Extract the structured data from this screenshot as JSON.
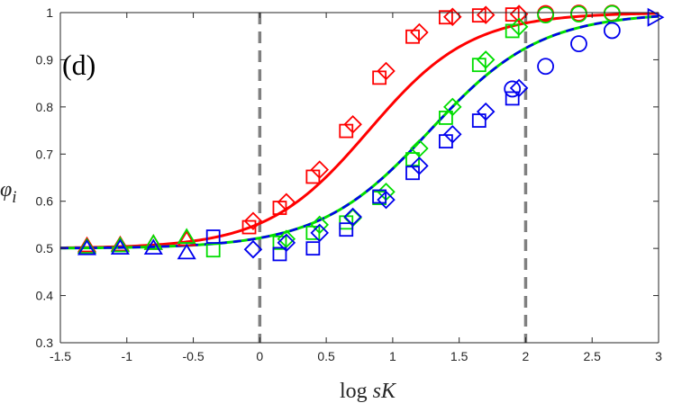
{
  "chart_data": {
    "type": "scatter",
    "panel_label": "(d)",
    "ylabel": "φ",
    "ylabel_sub": "i",
    "xlabel_log": "log",
    "xlabel_sK": "sK",
    "xlim": [
      -1.5,
      3
    ],
    "ylim": [
      0.3,
      1
    ],
    "xticks": [
      -1.5,
      -1,
      -0.5,
      0,
      0.5,
      1,
      1.5,
      2,
      2.5,
      3
    ],
    "xtick_labels": [
      "-1.5",
      "-1",
      "-0.5",
      "0",
      "0.5",
      "1",
      "1.5",
      "2",
      "2.5",
      "3"
    ],
    "yticks": [
      0.3,
      0.4,
      0.5,
      0.6,
      0.7,
      0.8,
      0.9,
      1
    ],
    "ytick_labels": [
      "0.3",
      "0.4",
      "0.5",
      "0.6",
      "0.7",
      "0.8",
      "0.9",
      "1"
    ],
    "vlines": [
      0,
      2
    ],
    "colors": {
      "red": "#ff0000",
      "green": "#00dd00",
      "blue": "#0000ee",
      "dash": "#808080",
      "axis": "#262626"
    },
    "curves": [
      {
        "name": "red-curve",
        "color": "red",
        "style": "solid",
        "center": 0.82,
        "slope": 2.6
      },
      {
        "name": "green-curve",
        "color": "green",
        "style": "solid",
        "center": 1.28,
        "slope": 2.4
      },
      {
        "name": "blue-curve",
        "color": "blue",
        "style": "dashed",
        "center": 1.28,
        "slope": 2.4
      }
    ],
    "series": [
      {
        "name": "red-triangle",
        "marker": "triangle-up",
        "color": "red",
        "points": [
          [
            -1.3,
            0.505
          ],
          [
            -1.05,
            0.507
          ],
          [
            -0.8,
            0.51
          ],
          [
            -0.55,
            0.518
          ]
        ]
      },
      {
        "name": "green-triangle",
        "marker": "triangle-up",
        "color": "green",
        "points": [
          [
            -1.3,
            0.502
          ],
          [
            -1.05,
            0.505
          ],
          [
            -0.8,
            0.51
          ],
          [
            -0.55,
            0.523
          ]
        ]
      },
      {
        "name": "blue-triangle",
        "marker": "triangle-up",
        "color": "blue",
        "points": [
          [
            -1.3,
            0.499
          ],
          [
            -1.05,
            0.5
          ],
          [
            -0.8,
            0.5
          ],
          [
            -0.55,
            0.49
          ]
        ]
      },
      {
        "name": "red-square",
        "marker": "square",
        "color": "red",
        "points": [
          [
            -0.08,
            0.545
          ],
          [
            0.15,
            0.586
          ],
          [
            0.4,
            0.652
          ],
          [
            0.65,
            0.749
          ],
          [
            0.9,
            0.862
          ],
          [
            1.15,
            0.949
          ],
          [
            1.4,
            0.99
          ],
          [
            1.65,
            0.994
          ],
          [
            1.9,
            0.996
          ]
        ]
      },
      {
        "name": "red-diamond",
        "marker": "diamond",
        "color": "red",
        "points": [
          [
            -0.05,
            0.558
          ],
          [
            0.2,
            0.598
          ],
          [
            0.45,
            0.667
          ],
          [
            0.7,
            0.763
          ],
          [
            0.95,
            0.876
          ],
          [
            1.2,
            0.958
          ],
          [
            1.45,
            0.991
          ],
          [
            1.7,
            0.995
          ],
          [
            1.95,
            0.997
          ]
        ]
      },
      {
        "name": "red-circle",
        "marker": "circle",
        "color": "red",
        "points": [
          [
            2.15,
            0.998
          ],
          [
            2.4,
            0.999
          ],
          [
            2.65,
            0.999
          ]
        ]
      },
      {
        "name": "green-square",
        "marker": "square",
        "color": "green",
        "points": [
          [
            -0.35,
            0.496
          ],
          [
            0.15,
            0.512
          ],
          [
            0.4,
            0.533
          ],
          [
            0.65,
            0.555
          ],
          [
            0.9,
            0.607
          ],
          [
            1.15,
            0.689
          ],
          [
            1.4,
            0.777
          ],
          [
            1.65,
            0.889
          ],
          [
            1.9,
            0.961
          ]
        ]
      },
      {
        "name": "green-diamond",
        "marker": "diamond",
        "color": "green",
        "points": [
          [
            0.2,
            0.52
          ],
          [
            0.45,
            0.55
          ],
          [
            0.7,
            0.565
          ],
          [
            0.95,
            0.62
          ],
          [
            1.2,
            0.712
          ],
          [
            1.45,
            0.8
          ],
          [
            1.7,
            0.9
          ],
          [
            1.95,
            0.97
          ]
        ]
      },
      {
        "name": "green-circle",
        "marker": "circle",
        "color": "green",
        "points": [
          [
            2.15,
            0.995
          ],
          [
            2.4,
            0.997
          ],
          [
            2.65,
            0.998
          ]
        ]
      },
      {
        "name": "blue-square",
        "marker": "square",
        "color": "blue",
        "points": [
          [
            -0.35,
            0.525
          ],
          [
            0.15,
            0.488
          ],
          [
            0.4,
            0.5
          ],
          [
            0.65,
            0.54
          ],
          [
            0.9,
            0.61
          ],
          [
            1.15,
            0.66
          ],
          [
            1.4,
            0.727
          ],
          [
            1.65,
            0.771
          ],
          [
            1.9,
            0.818
          ]
        ]
      },
      {
        "name": "blue-diamond",
        "marker": "diamond",
        "color": "blue",
        "points": [
          [
            -0.05,
            0.498
          ],
          [
            0.2,
            0.512
          ],
          [
            0.45,
            0.533
          ],
          [
            0.7,
            0.567
          ],
          [
            0.95,
            0.603
          ],
          [
            1.2,
            0.675
          ],
          [
            1.45,
            0.742
          ],
          [
            1.7,
            0.79
          ],
          [
            1.95,
            0.84
          ]
        ]
      },
      {
        "name": "blue-circle",
        "marker": "circle",
        "color": "blue",
        "points": [
          [
            1.9,
            0.838
          ],
          [
            2.15,
            0.886
          ],
          [
            2.4,
            0.934
          ],
          [
            2.65,
            0.962
          ]
        ]
      },
      {
        "name": "blue-triangle-right",
        "marker": "triangle-right",
        "color": "blue",
        "points": [
          [
            2.97,
            0.99
          ]
        ]
      }
    ]
  }
}
